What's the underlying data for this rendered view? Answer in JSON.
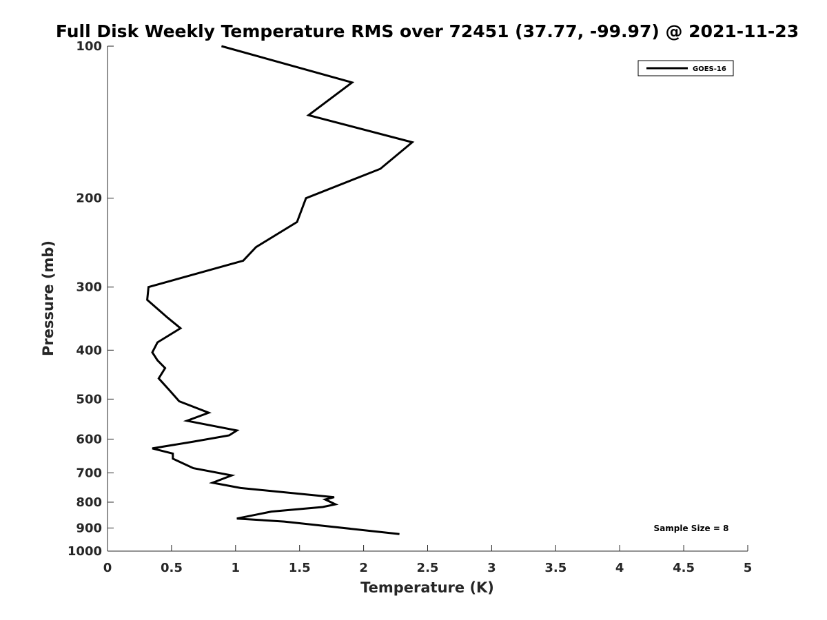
{
  "chart_data": {
    "type": "line",
    "title": "Full Disk Weekly Temperature RMS over 72451 (37.77, -99.97) @ 2021-11-23",
    "xlabel": "Temperature (K)",
    "ylabel": "Pressure (mb)",
    "xlim": [
      0,
      5
    ],
    "ylim": [
      100,
      1000
    ],
    "y_scale": "log",
    "y_reversed": true,
    "x_ticks": [
      "0",
      "0.5",
      "1",
      "1.5",
      "2",
      "2.5",
      "3",
      "3.5",
      "4",
      "4.5",
      "5"
    ],
    "x_tick_values": [
      0,
      0.5,
      1,
      1.5,
      2,
      2.5,
      3,
      3.5,
      4,
      4.5,
      5
    ],
    "y_ticks": [
      "100",
      "200",
      "300",
      "400",
      "500",
      "600",
      "700",
      "800",
      "900",
      "1000"
    ],
    "y_tick_values": [
      100,
      200,
      300,
      400,
      500,
      600,
      700,
      800,
      900,
      1000
    ],
    "grid": false,
    "legend_position": "top-right",
    "annotation": "Sample Size = 8",
    "series": [
      {
        "name": "GOES-16",
        "color": "#000000",
        "x": [
          0.89,
          1.91,
          1.57,
          2.38,
          2.13,
          1.55,
          1.48,
          1.16,
          1.06,
          0.32,
          0.31,
          0.47,
          0.57,
          0.39,
          0.35,
          0.39,
          0.45,
          0.4,
          0.48,
          0.56,
          0.79,
          0.62,
          1.01,
          0.95,
          0.67,
          0.35,
          0.51,
          0.51,
          0.67,
          0.97,
          0.82,
          1.04,
          1.77,
          1.7,
          1.78,
          1.68,
          1.28,
          1.01,
          1.38,
          2.28
        ],
        "y": [
          100,
          118,
          137,
          155,
          175,
          200,
          223,
          250,
          266,
          300,
          318,
          345,
          362,
          386,
          404,
          419,
          434,
          455,
          479,
          505,
          532,
          552,
          577,
          590,
          607,
          626,
          641,
          656,
          685,
          708,
          732,
          750,
          782,
          790,
          808,
          818,
          835,
          862,
          874,
          925
        ]
      }
    ]
  }
}
